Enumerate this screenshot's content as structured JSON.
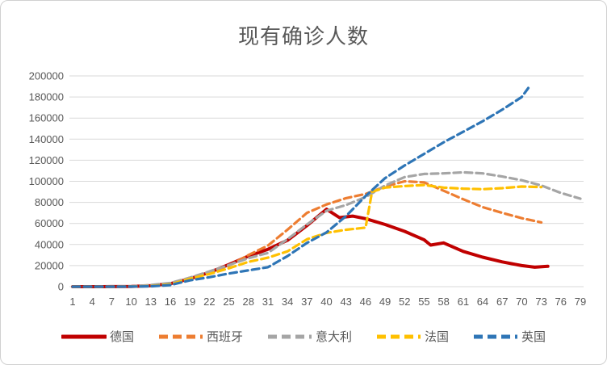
{
  "chart": {
    "background": "#ffffff",
    "border_color": "#d0d0d0",
    "gridline_color": "#d9d9d9",
    "text_color": "#595959"
  },
  "chart_data": {
    "type": "line",
    "title": "现有确诊人数",
    "xlabel": "",
    "ylabel": "",
    "grid": true,
    "legend_position": "bottom",
    "ylim": [
      0,
      200000
    ],
    "y_tick_step": 20000,
    "y_ticks": [
      0,
      20000,
      40000,
      60000,
      80000,
      100000,
      120000,
      140000,
      160000,
      180000,
      200000
    ],
    "x_range": [
      1,
      79
    ],
    "x_ticks": [
      1,
      4,
      7,
      10,
      13,
      16,
      19,
      22,
      25,
      28,
      31,
      34,
      37,
      40,
      43,
      46,
      49,
      52,
      55,
      58,
      61,
      64,
      67,
      70,
      73,
      76,
      79
    ],
    "series": [
      {
        "name": "德国",
        "id": "germany",
        "color": "#C00000",
        "dash": "solid",
        "x": [
          1,
          4,
          7,
          10,
          13,
          16,
          19,
          22,
          25,
          28,
          31,
          34,
          37,
          40,
          42,
          44,
          46,
          49,
          52,
          55,
          56,
          58,
          61,
          64,
          67,
          70,
          72,
          74
        ],
        "y": [
          20,
          30,
          50,
          200,
          1000,
          2800,
          7500,
          13500,
          21000,
          29000,
          35500,
          44000,
          58000,
          73500,
          65500,
          67000,
          64500,
          59000,
          52500,
          44500,
          39500,
          41500,
          33500,
          28000,
          23500,
          20000,
          18500,
          19300
        ]
      },
      {
        "name": "西班牙",
        "id": "spain",
        "color": "#ED7D31",
        "dash": "dashed",
        "x": [
          1,
          4,
          7,
          10,
          13,
          16,
          19,
          22,
          25,
          28,
          31,
          34,
          37,
          40,
          43,
          46,
          49,
          52,
          55,
          58,
          61,
          64,
          67,
          70,
          73
        ],
        "y": [
          0,
          0,
          10,
          100,
          600,
          2200,
          8500,
          14000,
          20000,
          30000,
          39000,
          54000,
          70000,
          78000,
          84000,
          88000,
          95000,
          100000,
          99000,
          91000,
          83000,
          75500,
          70000,
          65000,
          61000
        ]
      },
      {
        "name": "意大利",
        "id": "italy",
        "color": "#A5A5A5",
        "dash": "dashed",
        "x": [
          1,
          4,
          7,
          10,
          13,
          16,
          19,
          22,
          25,
          28,
          31,
          34,
          37,
          40,
          43,
          46,
          49,
          52,
          55,
          58,
          61,
          64,
          67,
          70,
          73,
          76,
          79
        ],
        "y": [
          0,
          0,
          20,
          200,
          1600,
          3500,
          8500,
          14500,
          20500,
          27000,
          32000,
          45000,
          59000,
          72000,
          77500,
          85000,
          96000,
          104000,
          107000,
          107500,
          108500,
          107500,
          104500,
          101000,
          96000,
          89000,
          83500
        ]
      },
      {
        "name": "法国",
        "id": "france",
        "color": "#FFC000",
        "dash": "dashed",
        "x": [
          1,
          4,
          7,
          10,
          13,
          16,
          19,
          22,
          25,
          28,
          31,
          34,
          37,
          40,
          43,
          46,
          47,
          49,
          52,
          55,
          58,
          61,
          64,
          67,
          70,
          73
        ],
        "y": [
          0,
          0,
          10,
          100,
          600,
          2200,
          7500,
          12000,
          17500,
          23500,
          27500,
          33500,
          45000,
          51000,
          54000,
          56000,
          90000,
          94000,
          95500,
          96500,
          94000,
          93000,
          92500,
          93500,
          95000,
          94500
        ]
      },
      {
        "name": "英国",
        "id": "uk",
        "color": "#2E75B6",
        "dash": "dashed",
        "x": [
          1,
          4,
          7,
          10,
          13,
          16,
          19,
          22,
          25,
          28,
          31,
          34,
          37,
          40,
          43,
          46,
          49,
          52,
          55,
          58,
          61,
          64,
          67,
          70,
          71
        ],
        "y": [
          0,
          0,
          10,
          50,
          300,
          1500,
          6000,
          9000,
          12500,
          15500,
          18500,
          29000,
          41500,
          51500,
          67000,
          86000,
          103000,
          115000,
          126000,
          137000,
          147000,
          157000,
          168000,
          180000,
          188500
        ]
      }
    ]
  }
}
